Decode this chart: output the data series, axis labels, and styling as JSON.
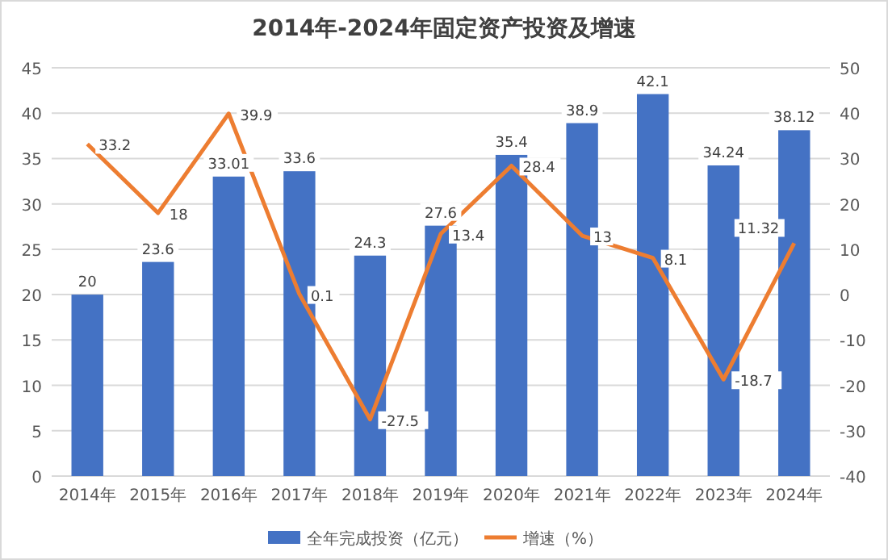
{
  "chart_data": {
    "type": "bar",
    "title": "2014年-2024年固定资产投资及增速",
    "categories": [
      "2014年",
      "2015年",
      "2016年",
      "2017年",
      "2018年",
      "2019年",
      "2020年",
      "2021年",
      "2022年",
      "2023年",
      "2024年"
    ],
    "series": [
      {
        "name": "全年完成投资（亿元）",
        "color": "#4472c4",
        "values": [
          20,
          23.6,
          33.01,
          33.6,
          24.3,
          27.6,
          35.4,
          38.9,
          42.1,
          34.24,
          38.12
        ]
      },
      {
        "name": "增速（%）",
        "type": "line",
        "axis": "y2",
        "color": "#ed7d31",
        "values": [
          33.2,
          18,
          39.9,
          0.1,
          -27.5,
          13.4,
          28.4,
          13,
          8.1,
          -18.7,
          11.32
        ]
      }
    ],
    "ylim": [
      0,
      45
    ],
    "yticks": [
      0,
      5,
      10,
      15,
      20,
      25,
      30,
      35,
      40,
      45
    ],
    "y2lim": [
      -40,
      50
    ],
    "y2ticks": [
      -40,
      -30,
      -20,
      -10,
      0,
      10,
      20,
      30,
      40,
      50
    ],
    "grid": "y",
    "legend": "bottom",
    "data_labels": true,
    "marker": "none",
    "line_style": "solid"
  }
}
